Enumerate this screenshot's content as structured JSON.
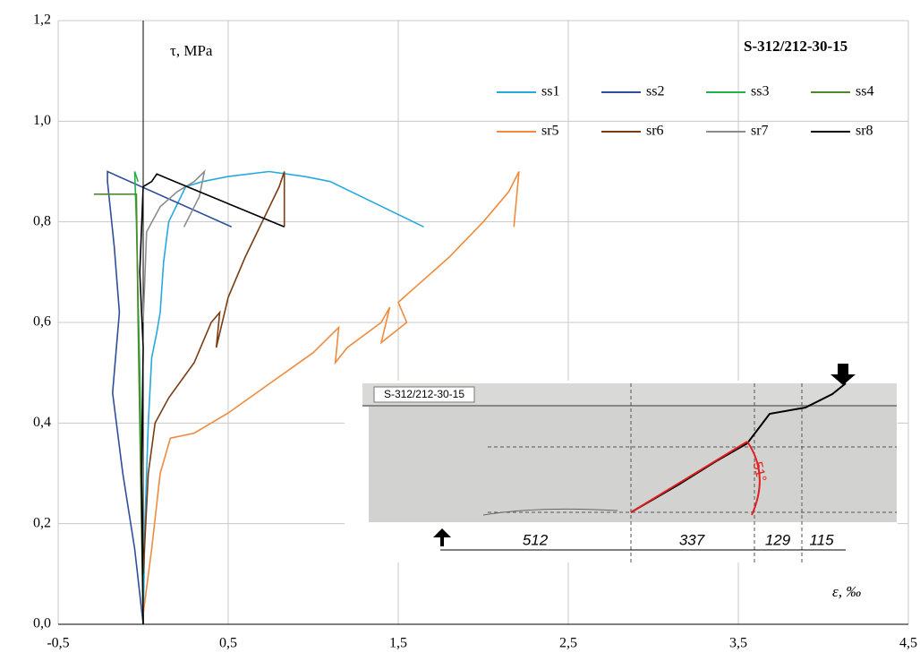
{
  "chart_data": {
    "type": "line",
    "title": "S-312/212-30-15",
    "y_label": "τ, MPa",
    "x_label": "ε, ‰",
    "xlim": [
      -0.5,
      4.5
    ],
    "ylim": [
      0,
      1.2
    ],
    "xticks": [
      {
        "value": -0.5,
        "label": "-0,5"
      },
      {
        "value": 0.5,
        "label": "0,5"
      },
      {
        "value": 1.5,
        "label": "1,5"
      },
      {
        "value": 2.5,
        "label": "2,5"
      },
      {
        "value": 3.5,
        "label": "3,5"
      },
      {
        "value": 4.5,
        "label": "4,5"
      }
    ],
    "yticks": [
      {
        "value": 0,
        "label": "0,0"
      },
      {
        "value": 0.2,
        "label": "0,2"
      },
      {
        "value": 0.4,
        "label": "0,4"
      },
      {
        "value": 0.6,
        "label": "0,6"
      },
      {
        "value": 0.8,
        "label": "0,8"
      },
      {
        "value": 1.0,
        "label": "1,0"
      },
      {
        "value": 1.2,
        "label": "1,2"
      }
    ],
    "grid": true,
    "legend": "top-right",
    "series": [
      {
        "name": "ss1",
        "color": "#25a9e0",
        "x": [
          0,
          0.01,
          0.03,
          0.05,
          0.08,
          0.1,
          0.12,
          0.15,
          0.25,
          0.35,
          0.5,
          0.74,
          0.95,
          1.1,
          1.65
        ],
        "values": [
          0,
          0.2,
          0.4,
          0.53,
          0.58,
          0.62,
          0.72,
          0.8,
          0.87,
          0.88,
          0.89,
          0.9,
          0.89,
          0.88,
          0.79
        ]
      },
      {
        "name": "ss2",
        "color": "#2e4e9c",
        "x": [
          0,
          -0.05,
          -0.12,
          -0.18,
          -0.14,
          -0.17,
          -0.21,
          -0.21,
          0.52
        ],
        "values": [
          0,
          0.15,
          0.3,
          0.46,
          0.62,
          0.75,
          0.88,
          0.9,
          0.79
        ]
      },
      {
        "name": "ss3",
        "color": "#22b14c",
        "x": [
          0,
          -0.01,
          -0.02,
          -0.03,
          -0.04,
          -0.05,
          -0.03
        ],
        "values": [
          0,
          0.3,
          0.5,
          0.65,
          0.8,
          0.9,
          0.88
        ]
      },
      {
        "name": "ss4",
        "color": "#4e8a2a",
        "x": [
          0,
          -0.02,
          -0.03,
          -0.04,
          -0.29
        ],
        "values": [
          0,
          0.4,
          0.6,
          0.855,
          0.855
        ]
      },
      {
        "name": "sr5",
        "color": "#f08a3c",
        "x": [
          0,
          0.05,
          0.1,
          0.16,
          0.3,
          0.5,
          0.75,
          1.0,
          1.15,
          1.13,
          1.2,
          1.4,
          1.45,
          1.4,
          1.55,
          1.5,
          1.6,
          1.8,
          2.0,
          2.15,
          2.21,
          2.18
        ],
        "values": [
          0.02,
          0.15,
          0.3,
          0.37,
          0.38,
          0.42,
          0.48,
          0.54,
          0.59,
          0.52,
          0.55,
          0.6,
          0.63,
          0.56,
          0.6,
          0.64,
          0.67,
          0.73,
          0.8,
          0.86,
          0.9,
          0.79
        ]
      },
      {
        "name": "sr6",
        "color": "#7a3c12",
        "x": [
          0,
          0.03,
          0.07,
          0.15,
          0.3,
          0.4,
          0.45,
          0.43,
          0.5,
          0.6,
          0.7,
          0.8,
          0.83,
          0.83
        ],
        "values": [
          0.1,
          0.3,
          0.4,
          0.45,
          0.52,
          0.6,
          0.62,
          0.55,
          0.65,
          0.73,
          0.8,
          0.87,
          0.9,
          0.79
        ]
      },
      {
        "name": "sr7",
        "color": "#8c8c8c",
        "x": [
          0,
          0.02,
          0.1,
          0.2,
          0.3,
          0.36,
          0.33,
          0.24
        ],
        "values": [
          0.6,
          0.78,
          0.83,
          0.86,
          0.88,
          0.9,
          0.85,
          0.79
        ]
      },
      {
        "name": "sr8",
        "color": "#000000",
        "x": [
          0,
          -0.01,
          0,
          -0.02,
          0,
          0.05,
          0.08,
          0.15,
          0.83
        ],
        "values": [
          0,
          0.3,
          0.55,
          0.7,
          0.87,
          0.88,
          0.895,
          0.885,
          0.79
        ]
      }
    ]
  },
  "inset": {
    "label": "S-312/212-30-15",
    "dimensions": [
      "512",
      "337",
      "129",
      "115"
    ],
    "angle": "51°"
  }
}
